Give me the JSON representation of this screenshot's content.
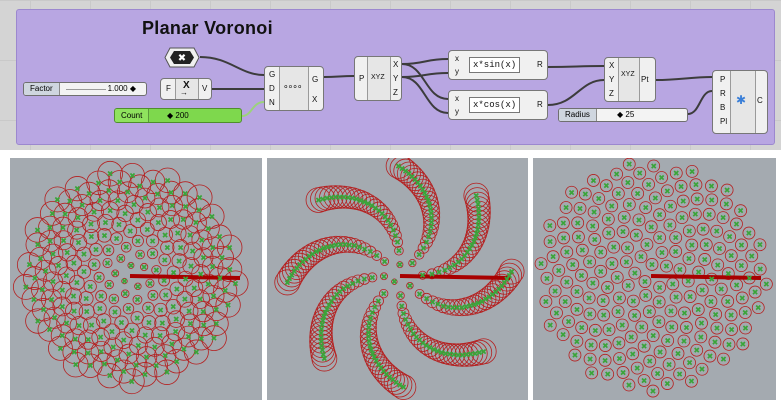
{
  "group": {
    "title": "Planar Voronoi"
  },
  "sliders": {
    "factor": {
      "label": "Factor",
      "value": "1.000 ◆"
    },
    "radius": {
      "label": "Radius",
      "value": "◆ 25"
    }
  },
  "count": {
    "label": "Count",
    "value": "◆ 200"
  },
  "expression_node": {
    "in": "F",
    "out": "V",
    "symbol": "X"
  },
  "series_node": {
    "inputs": [
      "G",
      "D",
      "N"
    ],
    "outputs": [
      "G",
      "X"
    ]
  },
  "deconstruct_node": {
    "input": "P",
    "outputs": [
      "X",
      "Y",
      "Z"
    ],
    "icon_text": "XYZ"
  },
  "sin_node": {
    "inputs": [
      "x",
      "y"
    ],
    "expression": "x*sin(x)",
    "output": "R"
  },
  "cos_node": {
    "inputs": [
      "x",
      "y"
    ],
    "expression": "x*cos(x)",
    "output": "R"
  },
  "construct_node": {
    "inputs": [
      "X",
      "Y",
      "Z"
    ],
    "output": "Pt",
    "icon_text": "XYZ"
  },
  "voronoi_node": {
    "inputs": [
      "P",
      "R",
      "B",
      "Pl"
    ],
    "output": "C"
  },
  "colors": {
    "group_fill": "#b8a6e2",
    "viewport_bg": "#a4aab0",
    "cell_stroke": "#b52020",
    "point_mark": "#3aa53a",
    "axis_line": "#a80000"
  },
  "viewports": [
    {
      "name": "voronoi-cells-small-radius"
    },
    {
      "name": "voronoi-cells-spiral"
    },
    {
      "name": "voronoi-cells-circles"
    }
  ]
}
